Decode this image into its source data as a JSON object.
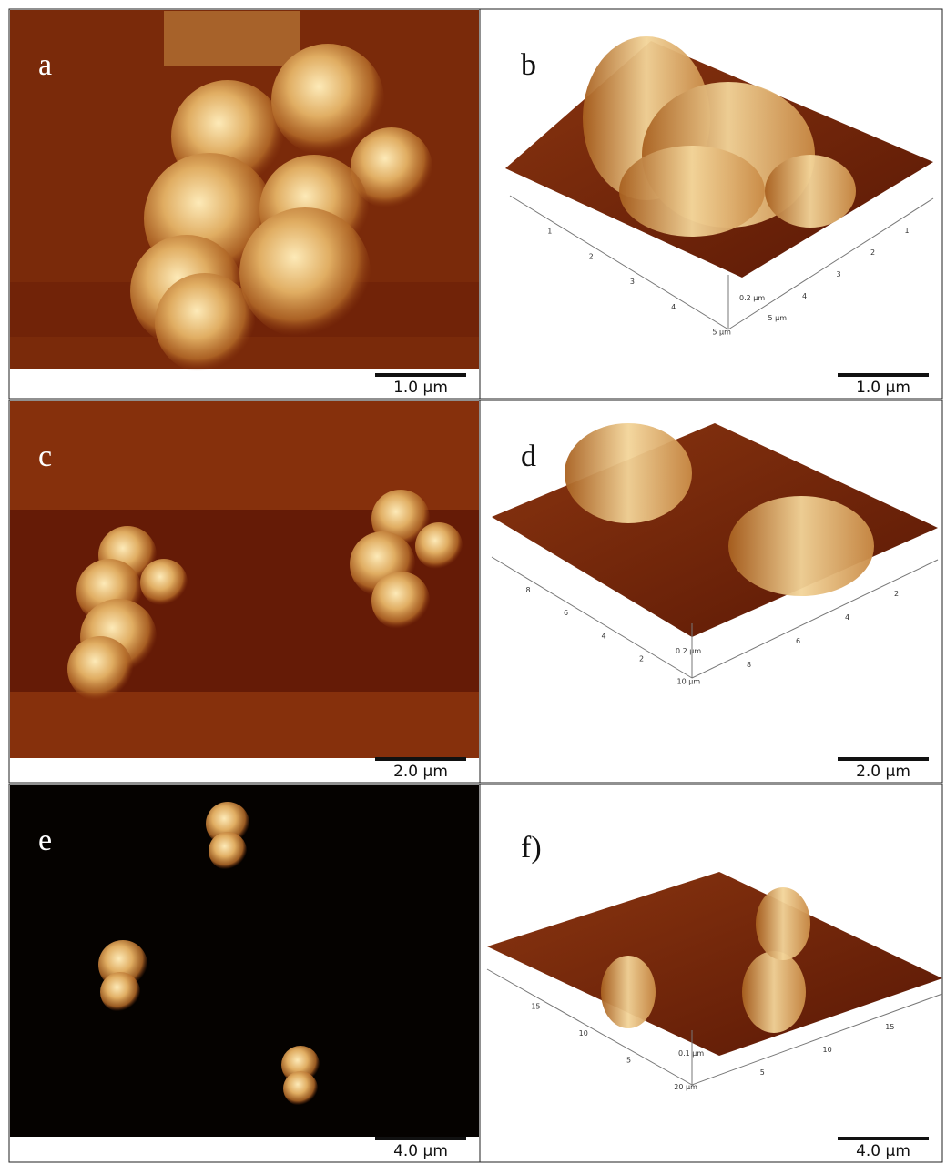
{
  "panels": [
    {
      "label": "a",
      "scale_bar": "1.0 µm"
    },
    {
      "label": "b",
      "scale_bar": "1.0 µm",
      "axis_labels": [
        "1",
        "2",
        "3",
        "4",
        "5 µm",
        "1",
        "2",
        "3",
        "4",
        "5 µm",
        "0.2 µm"
      ]
    },
    {
      "label": "c",
      "scale_bar": "2.0 µm"
    },
    {
      "label": "d",
      "scale_bar": "2.0 µm",
      "axis_labels": [
        "8",
        "6",
        "4",
        "2",
        "10 µm",
        "2",
        "4",
        "6",
        "8",
        "0.2 µm"
      ]
    },
    {
      "label": "e",
      "scale_bar": "4.0 µm"
    },
    {
      "label": "f)",
      "scale_bar": "4.0 µm",
      "axis_labels": [
        "15",
        "10",
        "5",
        "20 µm",
        "15",
        "10",
        "5",
        "0.1 µm"
      ]
    }
  ]
}
